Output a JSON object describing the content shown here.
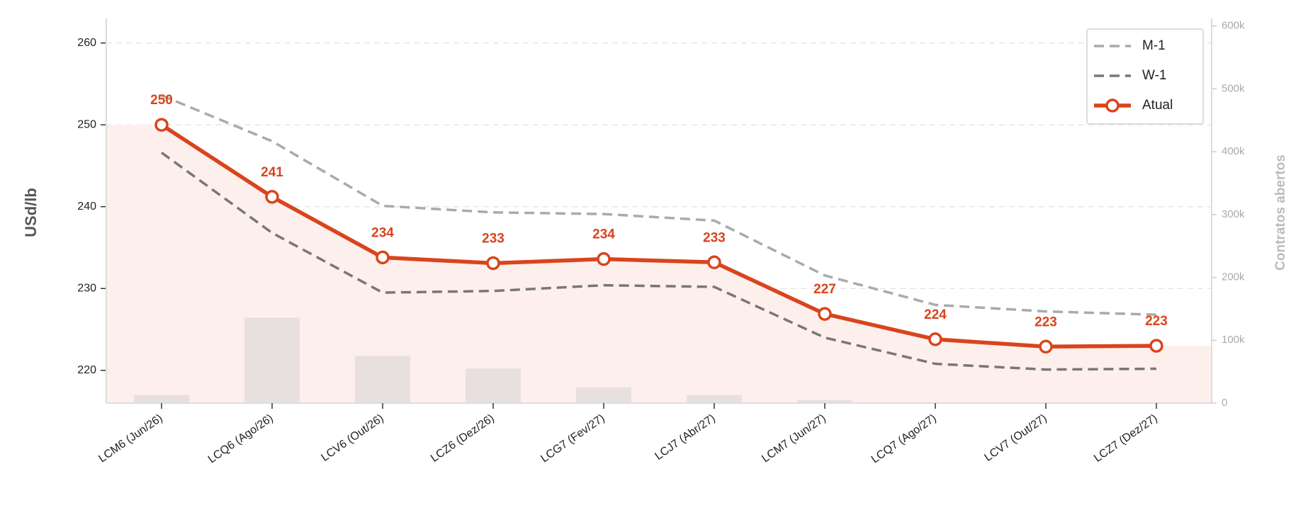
{
  "chart_data": {
    "type": "line",
    "categories": [
      "LCM6 (Jun/26)",
      "LCQ6 (Ago/26)",
      "LCV6 (Out/26)",
      "LCZ6 (Dez/26)",
      "LCG7 (Fev/27)",
      "LCJ7 (Abr/27)",
      "LCM7 (Jun/27)",
      "LCQ7 (Ago/27)",
      "LCV7 (Out/27)",
      "LCZ7 (Dez/27)"
    ],
    "y_label": "USd/lb",
    "y2_label": "Contratos abertos",
    "ylim": [
      216,
      263
    ],
    "yticks": [
      220,
      230,
      240,
      250,
      260
    ],
    "y2lim": [
      0,
      612000
    ],
    "y2ticks": [
      0,
      {
        "value": 100000,
        "label": "100k"
      },
      {
        "value": 200000,
        "label": "200k"
      },
      {
        "value": 300000,
        "label": "300k"
      },
      {
        "value": 400000,
        "label": "400k"
      },
      {
        "value": 500000,
        "label": "500k"
      },
      {
        "value": 600000,
        "label": "600k"
      }
    ],
    "grid": true,
    "legend": "upper right",
    "bars": {
      "axis": "y2",
      "color": "#e8e0df",
      "values": [
        13000,
        136000,
        75000,
        55000,
        25000,
        13000,
        5000,
        0,
        0,
        0
      ]
    },
    "series": [
      {
        "name": "M-1",
        "color": "#aaaaaa",
        "dash": "dashed",
        "values": [
          253.6,
          248.0,
          240.1,
          239.3,
          239.1,
          238.3,
          231.6,
          228.0,
          227.2,
          226.8
        ]
      },
      {
        "name": "W-1",
        "color": "#777777",
        "dash": "dashed",
        "values": [
          246.6,
          236.8,
          229.5,
          229.7,
          230.4,
          230.2,
          224.0,
          220.8,
          220.1,
          220.2
        ]
      },
      {
        "name": "Atual",
        "color": "#d9441c",
        "marker": true,
        "fill": "#fdefec",
        "values": [
          250.0,
          241.2,
          233.8,
          233.1,
          233.6,
          233.2,
          226.9,
          223.8,
          222.9,
          223.0
        ],
        "value_labels": [
          "250",
          "241",
          "234",
          "233",
          "234",
          "233",
          "227",
          "224",
          "223",
          "223"
        ]
      }
    ]
  }
}
